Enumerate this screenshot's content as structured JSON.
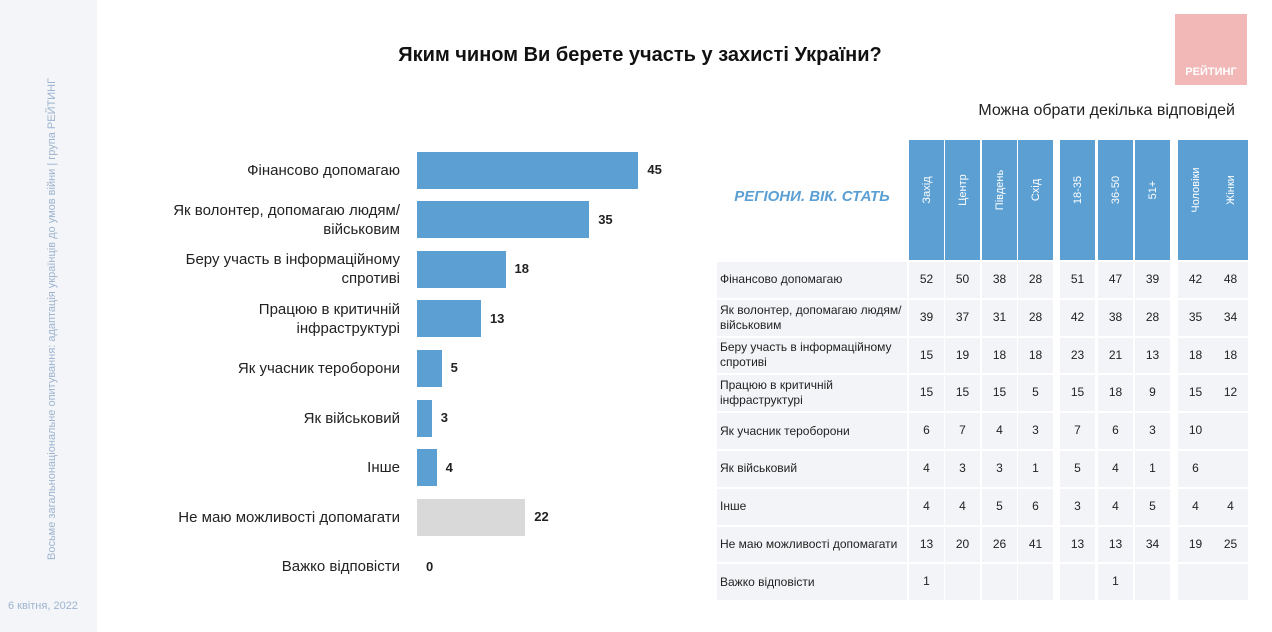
{
  "sidebar": {
    "text": "Восьме загальнонаціональне опитування: адаптація українців до умов війни | група РЕЙТИНГ",
    "date": "6 квітня, 2022"
  },
  "logo": "РЕЙТИНГ",
  "note": "Можна обрати декілька відповідей",
  "chart_data": {
    "type": "bar",
    "orientation": "horizontal",
    "title": "Яким чином Ви берете участь у захисті України?",
    "categories": [
      "Фінансово допомагаю",
      "Як волонтер, допомагаю людям/військовим",
      "Беру участь в інформаційному спротиві",
      "Працюю в критичній інфраструктурі",
      "Як учасник тероборони",
      "Як військовий",
      "Інше",
      "Не маю можливості допомагати",
      "Важко відповісти"
    ],
    "values": [
      45,
      35,
      18,
      13,
      5,
      3,
      4,
      22,
      0
    ],
    "colors": [
      "#5b9fd3",
      "#5b9fd3",
      "#5b9fd3",
      "#5b9fd3",
      "#5b9fd3",
      "#5b9fd3",
      "#5b9fd3",
      "#d9d9d9",
      "#5b9fd3"
    ]
  },
  "table": {
    "title": "РЕГІОНИ. ВІК. СТАТЬ",
    "columns": [
      "Захід",
      "Центр",
      "Південь",
      "Схід",
      "18-35",
      "36-50",
      "51+",
      "Чоловіки",
      "Жінки"
    ],
    "rows": [
      {
        "label": "Фінансово допомагаю",
        "values": [
          52,
          50,
          38,
          28,
          51,
          47,
          39,
          42,
          48
        ]
      },
      {
        "label": "Як волонтер, допомагаю людям/військовим",
        "values": [
          39,
          37,
          31,
          28,
          42,
          38,
          28,
          35,
          34
        ]
      },
      {
        "label": "Беру участь в інформаційному спротиві",
        "values": [
          15,
          19,
          18,
          18,
          23,
          21,
          13,
          18,
          18
        ]
      },
      {
        "label": "Працюю в критичній інфраструктурі",
        "values": [
          15,
          15,
          15,
          5,
          15,
          18,
          9,
          15,
          12
        ]
      },
      {
        "label": "Як учасник тероборони",
        "values": [
          6,
          7,
          4,
          3,
          7,
          6,
          3,
          10,
          null
        ]
      },
      {
        "label": "Як військовий",
        "values": [
          4,
          3,
          3,
          1,
          5,
          4,
          1,
          6,
          null
        ]
      },
      {
        "label": "Інше",
        "values": [
          4,
          4,
          5,
          6,
          3,
          4,
          5,
          4,
          4
        ]
      },
      {
        "label": "Не маю можливості допомагати",
        "values": [
          13,
          20,
          26,
          41,
          13,
          13,
          34,
          19,
          25
        ]
      },
      {
        "label": "Важко відповісти",
        "values": [
          1,
          null,
          null,
          null,
          null,
          1,
          null,
          null,
          null
        ]
      }
    ]
  }
}
